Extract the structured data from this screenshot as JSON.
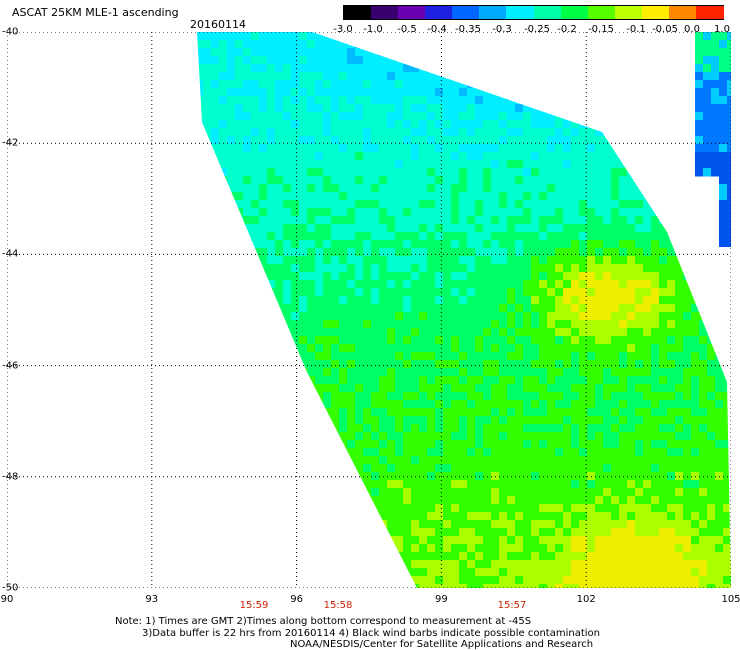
{
  "header": {
    "title": "ASCAT 25KM MLE-1 ascending",
    "date": "20160114"
  },
  "colorbar": {
    "labels": [
      "-3.0",
      "-1.0",
      "-0.5",
      "-0.4",
      "-0.35",
      "-0.3",
      "-0.25",
      "-0.2",
      "-0.15",
      "-0.1",
      "-0.05",
      "0.0",
      "1.0"
    ],
    "colors": [
      "#000000",
      "#3a0070",
      "#6a00b0",
      "#2020e0",
      "#0066ff",
      "#00aaff",
      "#00eeff",
      "#00ffaa",
      "#00ff44",
      "#55ff00",
      "#bbff00",
      "#ffee00",
      "#ff8800",
      "#ff2200"
    ]
  },
  "map": {
    "lat_labels": [
      "-40",
      "-42",
      "-44",
      "-46",
      "-48",
      "-50"
    ],
    "lon_labels": [
      "90",
      "93",
      "96",
      "99",
      "102",
      "105"
    ],
    "lat_range": [
      -40,
      -50
    ],
    "lon_range": [
      90,
      105
    ],
    "time_labels": [
      "15:59",
      "15:58",
      "15:57"
    ]
  },
  "notes": {
    "line1": "Note: 1) Times are GMT 2)Times along bottom correspond to measurement at -45S",
    "line2": "3)Data buffer is 22 hrs from 20160114 4) Black wind barbs indicate possible contamination",
    "line3": "NOAA/NESDIS/Center for Satellite Applications and Research"
  }
}
